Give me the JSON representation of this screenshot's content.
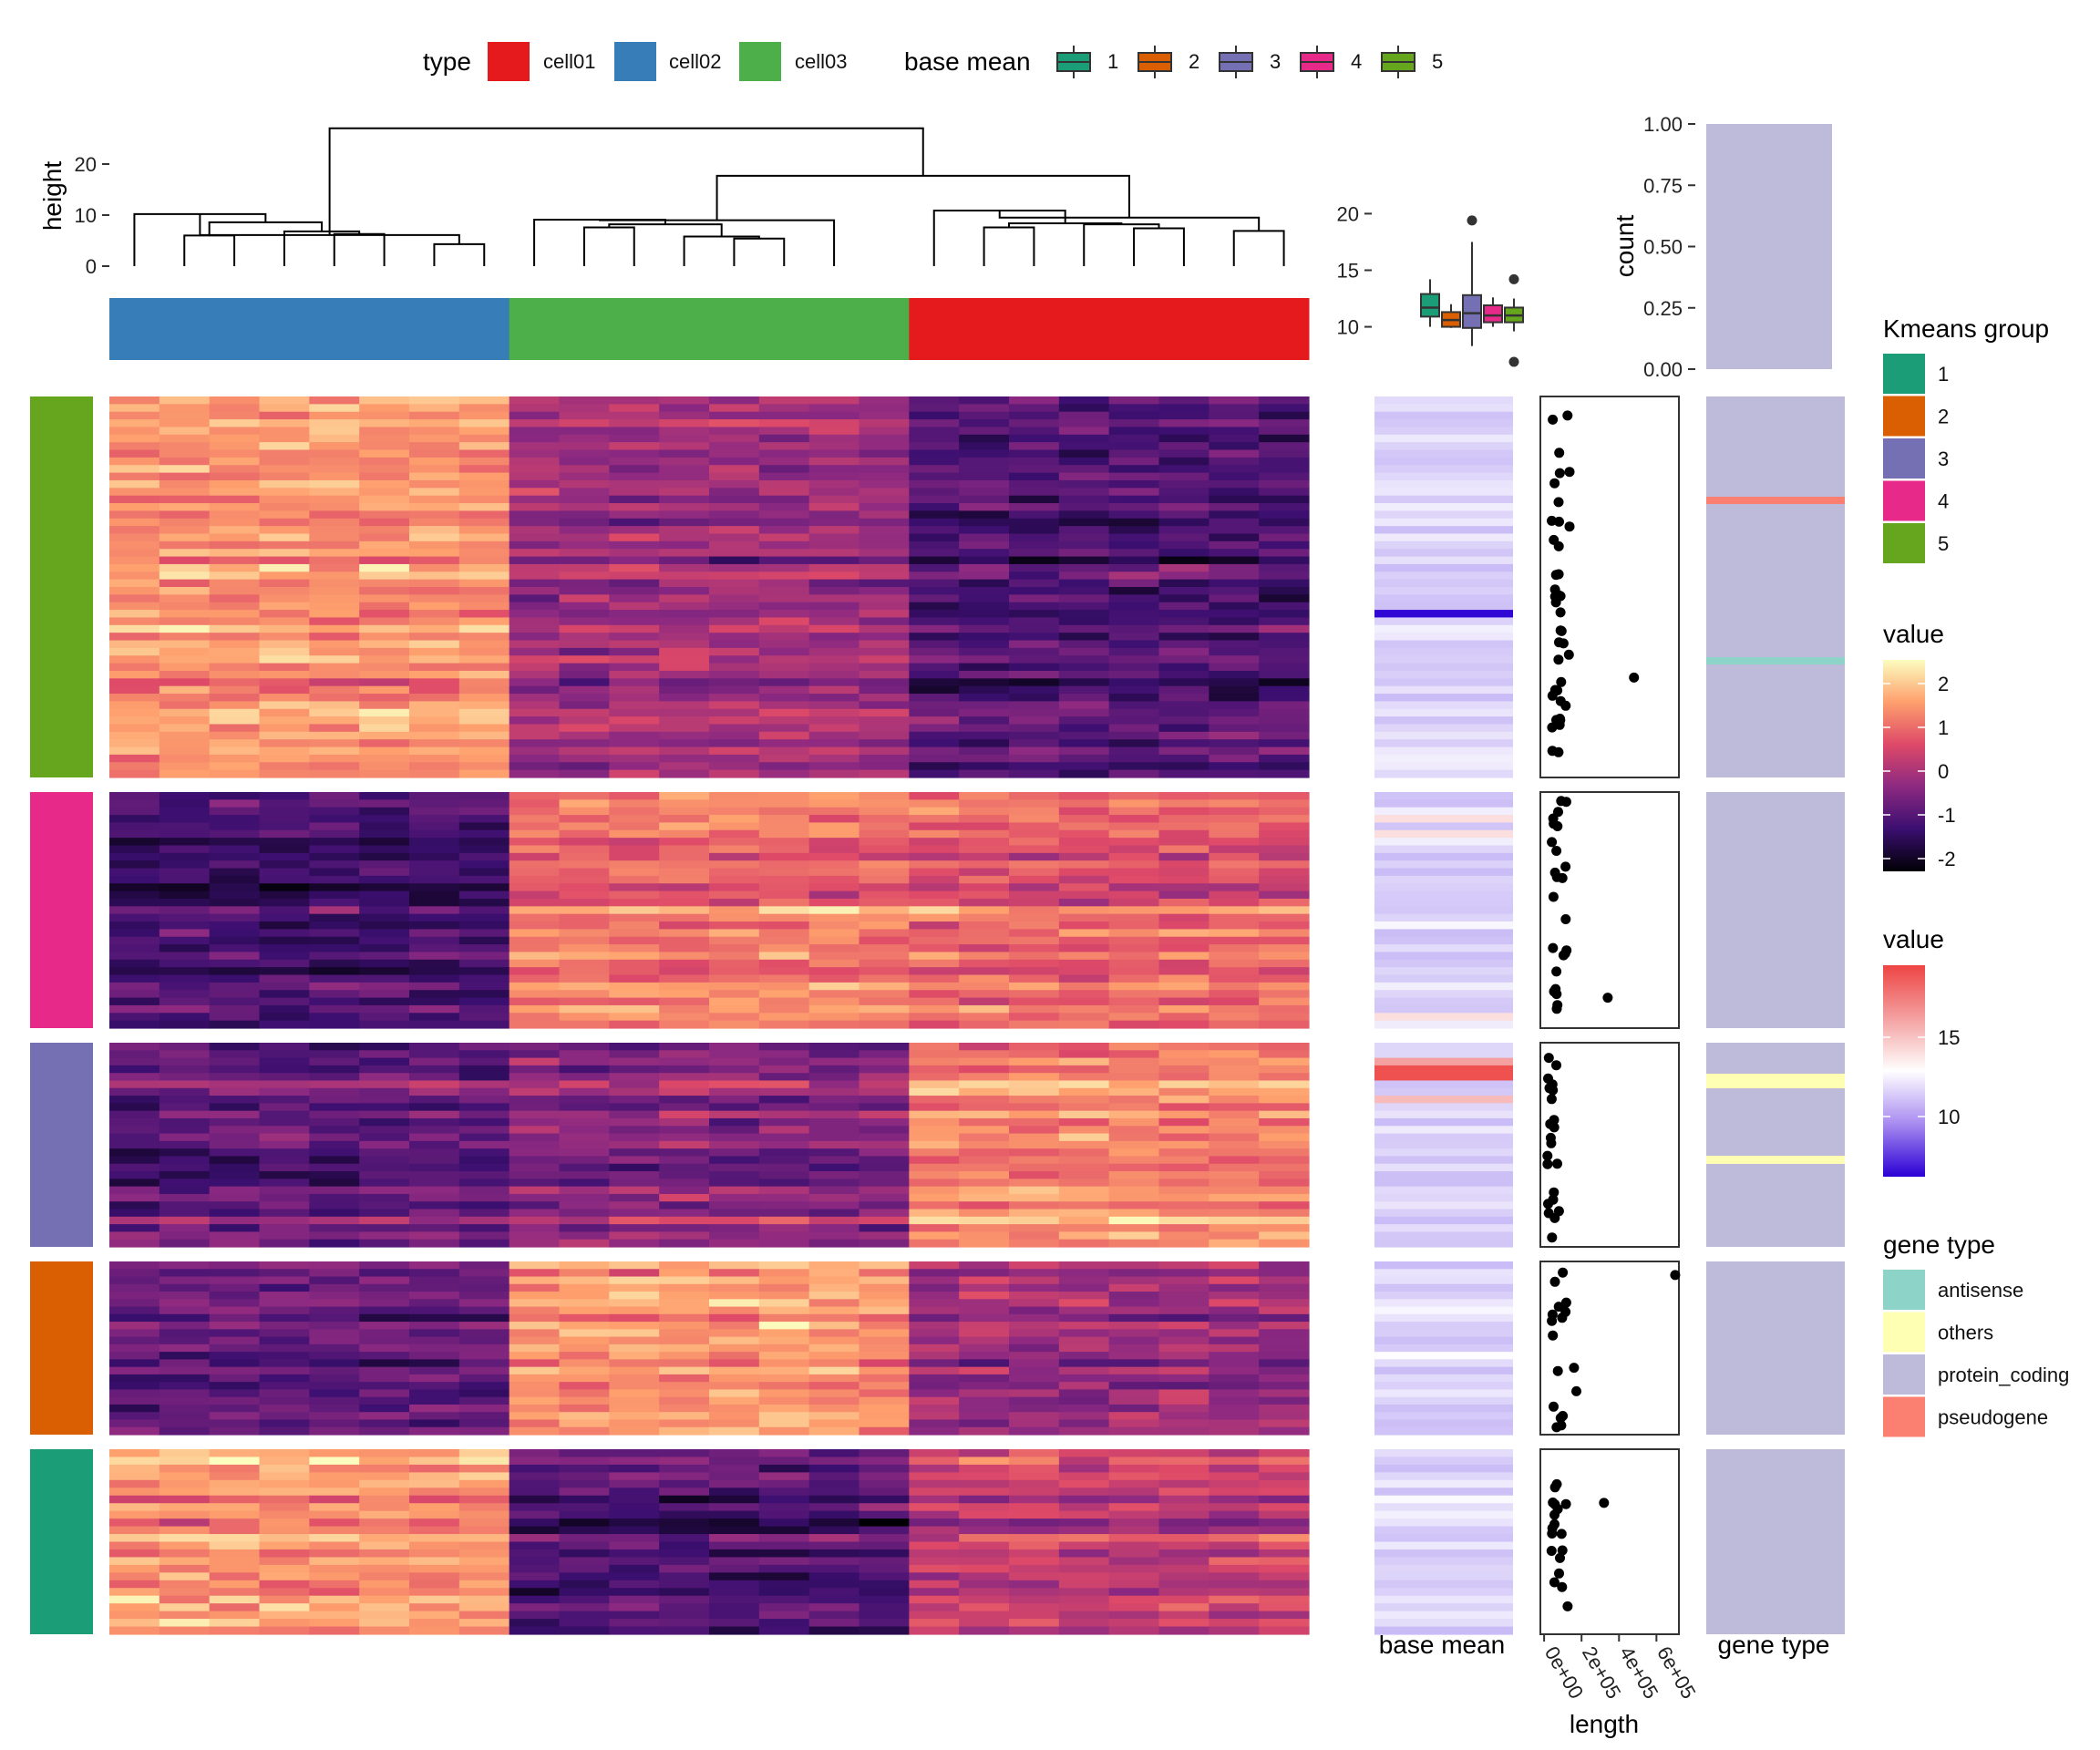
{
  "figure": {
    "type_legend": {
      "title": "type",
      "items": [
        {
          "label": "cell01",
          "color": "#E41A1C"
        },
        {
          "label": "cell02",
          "color": "#377EB8"
        },
        {
          "label": "cell03",
          "color": "#4DAF4A"
        }
      ]
    },
    "base_mean_legend": {
      "title": "base mean",
      "items": [
        {
          "label": "1",
          "color": "#1B9E77"
        },
        {
          "label": "2",
          "color": "#D95F02"
        },
        {
          "label": "3",
          "color": "#7570B3"
        },
        {
          "label": "4",
          "color": "#E7298A"
        },
        {
          "label": "5",
          "color": "#66A61E"
        }
      ]
    },
    "kmeans_legend": {
      "title": "Kmeans group",
      "items": [
        {
          "label": "1",
          "color": "#1B9E77"
        },
        {
          "label": "2",
          "color": "#D95F02"
        },
        {
          "label": "3",
          "color": "#7570B3"
        },
        {
          "label": "4",
          "color": "#E7298A"
        },
        {
          "label": "5",
          "color": "#66A61E"
        }
      ]
    },
    "heat_legend": {
      "title": "value",
      "ticks": [
        "2",
        "1",
        "0",
        "-1",
        "-2"
      ],
      "colors": [
        "#000004",
        "#3B0F70",
        "#8C2981",
        "#DE4968",
        "#FE9F6D",
        "#FCFDBF"
      ]
    },
    "basemean_color_legend": {
      "title": "value",
      "ticks": [
        "15",
        "10"
      ],
      "colors": [
        "#2A00D5",
        "#A88BF0",
        "#FFFFFF",
        "#F4A0A0",
        "#EE4444"
      ]
    },
    "gene_type_legend": {
      "title": "gene type",
      "items": [
        {
          "label": "antisense",
          "color": "#8DD3C7"
        },
        {
          "label": "others",
          "color": "#FFFFB3"
        },
        {
          "label": "protein_coding",
          "color": "#BEBADA"
        },
        {
          "label": "pseudogene",
          "color": "#FB8072"
        }
      ]
    },
    "bottom_labels": {
      "base_mean": "base mean",
      "gene_type": "gene type",
      "length": "length",
      "length_ticks": [
        "0e+00",
        "2e+05",
        "4e+05",
        "6e+05"
      ]
    }
  },
  "chart_data": [
    {
      "type": "heatmap",
      "title": "",
      "columns": [
        "cell02",
        "cell02",
        "cell02",
        "cell02",
        "cell02",
        "cell02",
        "cell02",
        "cell02",
        "cell03",
        "cell03",
        "cell03",
        "cell03",
        "cell03",
        "cell03",
        "cell03",
        "cell03",
        "cell01",
        "cell01",
        "cell01",
        "cell01",
        "cell01",
        "cell01",
        "cell01",
        "cell01"
      ],
      "row_groups": [
        {
          "kmeans_group": "5",
          "rows": 50,
          "mean_by_column_type": {
            "cell02": 1.2,
            "cell03": -0.3,
            "cell01": -1.2
          }
        },
        {
          "kmeans_group": "4",
          "rows": 31,
          "mean_by_column_type": {
            "cell02": -1.3,
            "cell03": 0.9,
            "cell01": 0.7
          }
        },
        {
          "kmeans_group": "3",
          "rows": 27,
          "mean_by_column_type": {
            "cell02": -0.9,
            "cell03": -0.5,
            "cell01": 1.2
          }
        },
        {
          "kmeans_group": "2",
          "rows": 23,
          "mean_by_column_type": {
            "cell02": -0.9,
            "cell03": 1.3,
            "cell01": -0.3
          }
        },
        {
          "kmeans_group": "1",
          "rows": 24,
          "mean_by_column_type": {
            "cell02": 1.3,
            "cell03": -1.1,
            "cell01": 0.2
          }
        }
      ],
      "value_range": [
        -2.3,
        2.3
      ]
    },
    {
      "type": "line",
      "title": "",
      "description": "column dendrogram",
      "ylabel": "height",
      "ylim": [
        0,
        27
      ],
      "yticks": [
        0,
        10,
        20
      ]
    },
    {
      "type": "box",
      "title": "",
      "description": "base mean by Kmeans group",
      "categories": [
        "1",
        "2",
        "3",
        "4",
        "5"
      ],
      "ylim": [
        6.5,
        21
      ],
      "yticks": [
        10,
        15,
        20
      ],
      "boxes": [
        {
          "min": 10.0,
          "q1": 10.9,
          "median": 11.7,
          "q3": 12.9,
          "max": 14.2,
          "outliers": []
        },
        {
          "min": 9.9,
          "q1": 10.0,
          "median": 10.6,
          "q3": 11.3,
          "max": 12.0,
          "outliers": []
        },
        {
          "min": 8.3,
          "q1": 9.9,
          "median": 11.2,
          "q3": 12.8,
          "max": 17.5,
          "outliers": [
            19.4
          ]
        },
        {
          "min": 10.0,
          "q1": 10.4,
          "median": 11.0,
          "q3": 11.9,
          "max": 12.6,
          "outliers": []
        },
        {
          "min": 9.6,
          "q1": 10.4,
          "median": 11.0,
          "q3": 11.7,
          "max": 12.5,
          "outliers": [
            14.2,
            6.9
          ]
        }
      ]
    },
    {
      "type": "bar",
      "title": "",
      "description": "gene type proportion",
      "ylabel": "count",
      "ylim": [
        0,
        1
      ],
      "yticks": [
        "0.00",
        "0.25",
        "0.50",
        "0.75",
        "1.00"
      ],
      "series": [
        {
          "category": "protein_coding",
          "value": 1.0
        }
      ]
    },
    {
      "type": "scatter",
      "title": "",
      "description": "gene length per row",
      "xlabel": "length",
      "xlim": [
        -20000,
        720000
      ],
      "xticks": [
        "0e+00",
        "2e+05",
        "4e+05",
        "6e+05"
      ],
      "notable_points": [
        {
          "group": "5",
          "x": 480000
        },
        {
          "group": "2",
          "x": 700000
        },
        {
          "group": "4",
          "x": 340000
        },
        {
          "group": "1",
          "x": 320000
        }
      ]
    }
  ]
}
